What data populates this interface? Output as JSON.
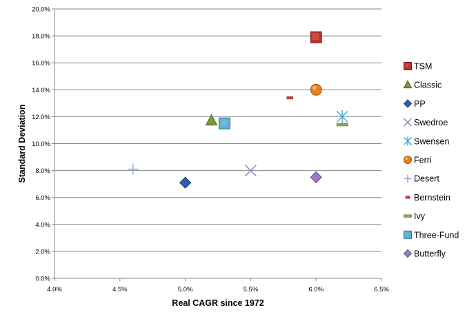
{
  "chart_data": {
    "type": "scatter",
    "title": "",
    "xlabel": "Real CAGR since 1972",
    "ylabel": "Standard Deviation",
    "xlim": [
      0.04,
      0.065
    ],
    "ylim": [
      0.0,
      0.2
    ],
    "x_ticks": [
      0.04,
      0.045,
      0.05,
      0.055,
      0.06,
      0.065
    ],
    "x_tick_labels": [
      "4.0%",
      "4.5%",
      "5.0%",
      "5.5%",
      "6.0%",
      "6.5%"
    ],
    "y_ticks": [
      0.0,
      0.02,
      0.04,
      0.06,
      0.08,
      0.1,
      0.12,
      0.14,
      0.16,
      0.18,
      0.2
    ],
    "y_tick_labels": [
      "0.0%",
      "2.0%",
      "4.0%",
      "6.0%",
      "8.0%",
      "10.0%",
      "12.0%",
      "14.0%",
      "16.0%",
      "18.0%",
      "20.0%"
    ],
    "grid": "horizontal",
    "legend_position": "right",
    "series": [
      {
        "name": "TSM",
        "marker": "square",
        "color": "#c0302c",
        "x": 0.06,
        "y": 0.179
      },
      {
        "name": "Classic",
        "marker": "triangle",
        "color": "#7a9a3a",
        "x": 0.052,
        "y": 0.117
      },
      {
        "name": "PP",
        "marker": "diamond",
        "color": "#2f5ea8",
        "x": 0.05,
        "y": 0.071
      },
      {
        "name": "Swedroe",
        "marker": "x",
        "color": "#8a82c0",
        "x": 0.055,
        "y": 0.08
      },
      {
        "name": "Swensen",
        "marker": "star",
        "color": "#4aacc6",
        "x": 0.062,
        "y": 0.12
      },
      {
        "name": "Ferri",
        "marker": "circle",
        "color": "#e8821e",
        "x": 0.06,
        "y": 0.14
      },
      {
        "name": "Desert",
        "marker": "plus",
        "color": "#8aa8d6",
        "x": 0.046,
        "y": 0.081
      },
      {
        "name": "Bernstein",
        "marker": "dash",
        "color": "#d04040",
        "x": 0.058,
        "y": 0.134
      },
      {
        "name": "Ivy",
        "marker": "line",
        "color": "#8cab54",
        "x": 0.062,
        "y": 0.114
      },
      {
        "name": "Three-Fund",
        "marker": "square",
        "color": "#5cb0d0",
        "x": 0.053,
        "y": 0.115
      },
      {
        "name": "Butterfly",
        "marker": "diamond",
        "color": "#9a7cc0",
        "x": 0.06,
        "y": 0.075
      }
    ]
  }
}
